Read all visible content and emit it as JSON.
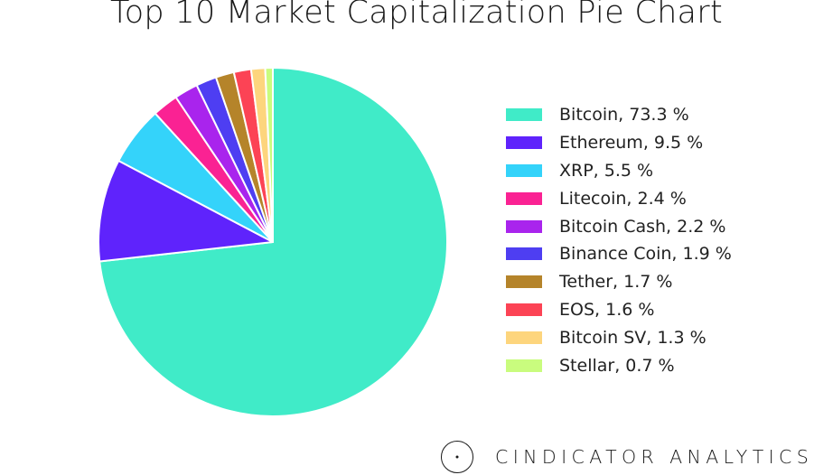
{
  "chart_data": {
    "type": "pie",
    "title": "Top 10 Market Capitalization Pie Chart",
    "slices": [
      {
        "name": "Bitcoin",
        "label": "Bitcoin, 73.3 %",
        "value": 73.3,
        "color": "#40ebc8"
      },
      {
        "name": "Ethereum",
        "label": "Ethereum, 9.5 %",
        "value": 9.5,
        "color": "#5f23fc"
      },
      {
        "name": "XRP",
        "label": "XRP, 5.5 %",
        "value": 5.5,
        "color": "#34d3fa"
      },
      {
        "name": "Litecoin",
        "label": "Litecoin, 2.4 %",
        "value": 2.4,
        "color": "#fa2293"
      },
      {
        "name": "Bitcoin Cash",
        "label": "Bitcoin Cash, 2.2 %",
        "value": 2.2,
        "color": "#a924ed"
      },
      {
        "name": "Binance Coin",
        "label": "Binance Coin, 1.9 %",
        "value": 1.9,
        "color": "#4e3ef2"
      },
      {
        "name": "Tether",
        "label": "Tether, 1.7 %",
        "value": 1.7,
        "color": "#b5842a"
      },
      {
        "name": "EOS",
        "label": "EOS, 1.6 %",
        "value": 1.6,
        "color": "#fc4355"
      },
      {
        "name": "Bitcoin SV",
        "label": "Bitcoin SV, 1.3 %",
        "value": 1.3,
        "color": "#fdd57d"
      },
      {
        "name": "Stellar",
        "label": "Stellar, 0.7 %",
        "value": 0.7,
        "color": "#c9fc7e"
      }
    ],
    "start_angle": "top",
    "direction": "clockwise",
    "legend_position": "right"
  },
  "footer": {
    "brand": "CINDICATOR ANALYTICS",
    "logo_icon": "circle-dot-icon"
  }
}
